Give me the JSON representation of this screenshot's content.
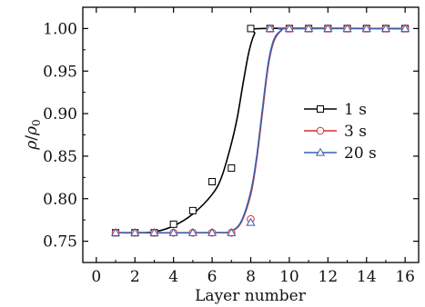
{
  "chart_data": {
    "type": "line",
    "xlabel": "Layer number",
    "ylabel_main": "ρ",
    "ylabel_slash": "/",
    "ylabel_rho": "ρ",
    "ylabel_sub": "0",
    "xlim": [
      -0.7,
      16.7
    ],
    "ylim": [
      0.725,
      1.025
    ],
    "xticks": [
      0,
      2,
      4,
      6,
      8,
      10,
      12,
      14,
      16
    ],
    "xtick_labels": [
      "0",
      "2",
      "4",
      "6",
      "8",
      "10",
      "12",
      "14",
      "16"
    ],
    "yticks": [
      0.75,
      0.8,
      0.85,
      0.9,
      0.95,
      1.0
    ],
    "ytick_labels": [
      "0.75",
      "0.80",
      "0.85",
      "0.90",
      "0.95",
      "1.00"
    ],
    "legend_position": "center-right",
    "series": [
      {
        "name": "1 s",
        "color": "#000000",
        "marker": "square",
        "points_x": [
          1,
          2,
          3,
          4,
          5,
          6,
          7,
          8,
          9,
          10,
          11,
          12,
          13,
          14,
          15,
          16
        ],
        "points_y": [
          0.76,
          0.76,
          0.76,
          0.77,
          0.786,
          0.82,
          0.836,
          1.0,
          1.0,
          1.0,
          1.0,
          1.0,
          1.0,
          1.0,
          1.0,
          1.0
        ],
        "curve": [
          [
            1,
            0.76
          ],
          [
            2,
            0.76
          ],
          [
            3,
            0.761
          ],
          [
            4,
            0.768
          ],
          [
            5,
            0.782
          ],
          [
            6,
            0.805
          ],
          [
            6.5,
            0.826
          ],
          [
            7,
            0.865
          ],
          [
            7.3,
            0.895
          ],
          [
            7.6,
            0.935
          ],
          [
            7.9,
            0.972
          ],
          [
            8.2,
            0.994
          ],
          [
            8.5,
            1.0
          ],
          [
            16,
            1.0
          ]
        ]
      },
      {
        "name": "3 s",
        "color": "#d03030",
        "marker": "circle",
        "points_x": [
          1,
          2,
          3,
          4,
          5,
          6,
          7,
          8,
          9,
          10,
          11,
          12,
          13,
          14,
          15,
          16
        ],
        "points_y": [
          0.76,
          0.76,
          0.76,
          0.76,
          0.76,
          0.76,
          0.76,
          0.776,
          1.0,
          1.0,
          1.0,
          1.0,
          1.0,
          1.0,
          1.0,
          1.0
        ],
        "curve": [
          [
            1,
            0.76
          ],
          [
            6.5,
            0.76
          ],
          [
            7,
            0.762
          ],
          [
            7.5,
            0.772
          ],
          [
            8,
            0.805
          ],
          [
            8.3,
            0.845
          ],
          [
            8.6,
            0.9
          ],
          [
            8.9,
            0.955
          ],
          [
            9.2,
            0.985
          ],
          [
            9.6,
            0.998
          ],
          [
            10,
            1.0
          ],
          [
            16,
            1.0
          ]
        ]
      },
      {
        "name": "20 s",
        "color": "#3a5fb0",
        "marker": "triangle",
        "points_x": [
          1,
          2,
          3,
          4,
          5,
          6,
          7,
          8,
          9,
          10,
          11,
          12,
          13,
          14,
          15,
          16
        ],
        "points_y": [
          0.76,
          0.76,
          0.76,
          0.76,
          0.76,
          0.76,
          0.76,
          0.772,
          1.0,
          1.0,
          1.0,
          1.0,
          1.0,
          1.0,
          1.0,
          1.0
        ],
        "curve": [
          [
            1,
            0.76
          ],
          [
            6.5,
            0.76
          ],
          [
            7,
            0.762
          ],
          [
            7.5,
            0.773
          ],
          [
            8,
            0.808
          ],
          [
            8.3,
            0.848
          ],
          [
            8.6,
            0.904
          ],
          [
            8.9,
            0.958
          ],
          [
            9.2,
            0.987
          ],
          [
            9.6,
            0.998
          ],
          [
            10,
            1.0
          ],
          [
            16,
            1.0
          ]
        ]
      }
    ]
  }
}
